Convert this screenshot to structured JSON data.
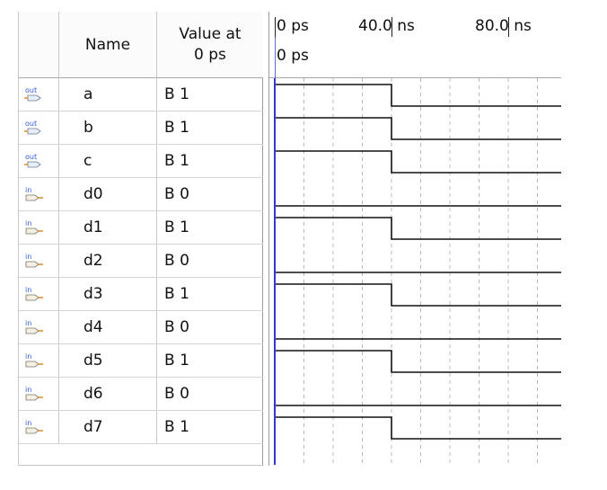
{
  "table": {
    "name_header": "Name",
    "value_header_line1": "Value at",
    "value_header_line2": "0 ps"
  },
  "ruler": {
    "ticks": [
      "0 ps",
      "40.0 ns",
      "80.0 ns"
    ],
    "cursor_label": "0 ps"
  },
  "colors": {
    "waveform": "#111111",
    "cursor": "#2a3fd0",
    "grid": "#b8b8b8",
    "icon_blue": "#2f5bd7",
    "icon_orange": "#e08a1e"
  },
  "wave_period_ns": 80,
  "signals": [
    {
      "dir": "out",
      "name": "a",
      "value": "B 1",
      "icon": "output-pin-icon",
      "waveform": [
        1,
        0
      ]
    },
    {
      "dir": "out",
      "name": "b",
      "value": "B 1",
      "icon": "output-pin-icon",
      "waveform": [
        1,
        0
      ]
    },
    {
      "dir": "out",
      "name": "c",
      "value": "B 1",
      "icon": "output-pin-icon",
      "waveform": [
        1,
        0
      ]
    },
    {
      "dir": "in",
      "name": "d0",
      "value": "B 0",
      "icon": "input-pin-icon",
      "waveform": [
        0,
        0
      ]
    },
    {
      "dir": "in",
      "name": "d1",
      "value": "B 1",
      "icon": "input-pin-icon",
      "waveform": [
        1,
        0
      ]
    },
    {
      "dir": "in",
      "name": "d2",
      "value": "B 0",
      "icon": "input-pin-icon",
      "waveform": [
        0,
        0
      ]
    },
    {
      "dir": "in",
      "name": "d3",
      "value": "B 1",
      "icon": "input-pin-icon",
      "waveform": [
        1,
        0
      ]
    },
    {
      "dir": "in",
      "name": "d4",
      "value": "B 0",
      "icon": "input-pin-icon",
      "waveform": [
        0,
        0
      ]
    },
    {
      "dir": "in",
      "name": "d5",
      "value": "B 1",
      "icon": "input-pin-icon",
      "waveform": [
        1,
        0
      ]
    },
    {
      "dir": "in",
      "name": "d6",
      "value": "B 0",
      "icon": "input-pin-icon",
      "waveform": [
        0,
        0
      ]
    },
    {
      "dir": "in",
      "name": "d7",
      "value": "B 1",
      "icon": "input-pin-icon",
      "waveform": [
        1,
        0
      ]
    }
  ]
}
